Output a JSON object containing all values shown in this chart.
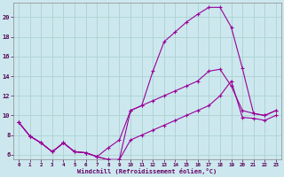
{
  "xlabel": "Windchill (Refroidissement éolien,°C)",
  "background_color": "#cce8ee",
  "grid_color": "#b0d4d4",
  "line_color": "#990099",
  "xlim": [
    -0.5,
    23.5
  ],
  "ylim": [
    5.5,
    21.5
  ],
  "xticks": [
    0,
    1,
    2,
    3,
    4,
    5,
    6,
    7,
    8,
    9,
    10,
    11,
    12,
    13,
    14,
    15,
    16,
    17,
    18,
    19,
    20,
    21,
    22,
    23
  ],
  "yticks": [
    6,
    8,
    10,
    12,
    14,
    16,
    18,
    20
  ],
  "series1_x": [
    0,
    1,
    2,
    3,
    4,
    5,
    6,
    7,
    8,
    9,
    10,
    11,
    12,
    13,
    14,
    15,
    16,
    17,
    18,
    19,
    20,
    21,
    22,
    23
  ],
  "series1_y": [
    9.3,
    7.9,
    7.2,
    6.3,
    7.2,
    6.3,
    6.2,
    5.8,
    5.5,
    5.5,
    10.5,
    11.0,
    14.5,
    17.5,
    18.5,
    19.5,
    20.3,
    21.0,
    21.0,
    19.0,
    14.8,
    10.2,
    10.0,
    10.5
  ],
  "series2_x": [
    0,
    1,
    2,
    3,
    4,
    5,
    6,
    7,
    8,
    9,
    10,
    11,
    12,
    13,
    14,
    15,
    16,
    17,
    18,
    19,
    20,
    21,
    22,
    23
  ],
  "series2_y": [
    9.3,
    7.9,
    7.2,
    6.3,
    7.2,
    6.3,
    6.2,
    5.8,
    6.7,
    7.5,
    10.5,
    11.0,
    11.5,
    12.0,
    12.5,
    13.0,
    13.5,
    14.5,
    14.7,
    13.0,
    10.5,
    10.2,
    10.0,
    10.5
  ],
  "series3_x": [
    0,
    1,
    2,
    3,
    4,
    5,
    6,
    7,
    8,
    9,
    10,
    11,
    12,
    13,
    14,
    15,
    16,
    17,
    18,
    19,
    20,
    21,
    22,
    23
  ],
  "series3_y": [
    9.3,
    7.9,
    7.2,
    6.3,
    7.2,
    6.3,
    6.2,
    5.8,
    5.5,
    5.5,
    7.5,
    8.0,
    8.5,
    9.0,
    9.5,
    10.0,
    10.5,
    11.0,
    12.0,
    13.5,
    9.8,
    9.7,
    9.5,
    10.0
  ]
}
